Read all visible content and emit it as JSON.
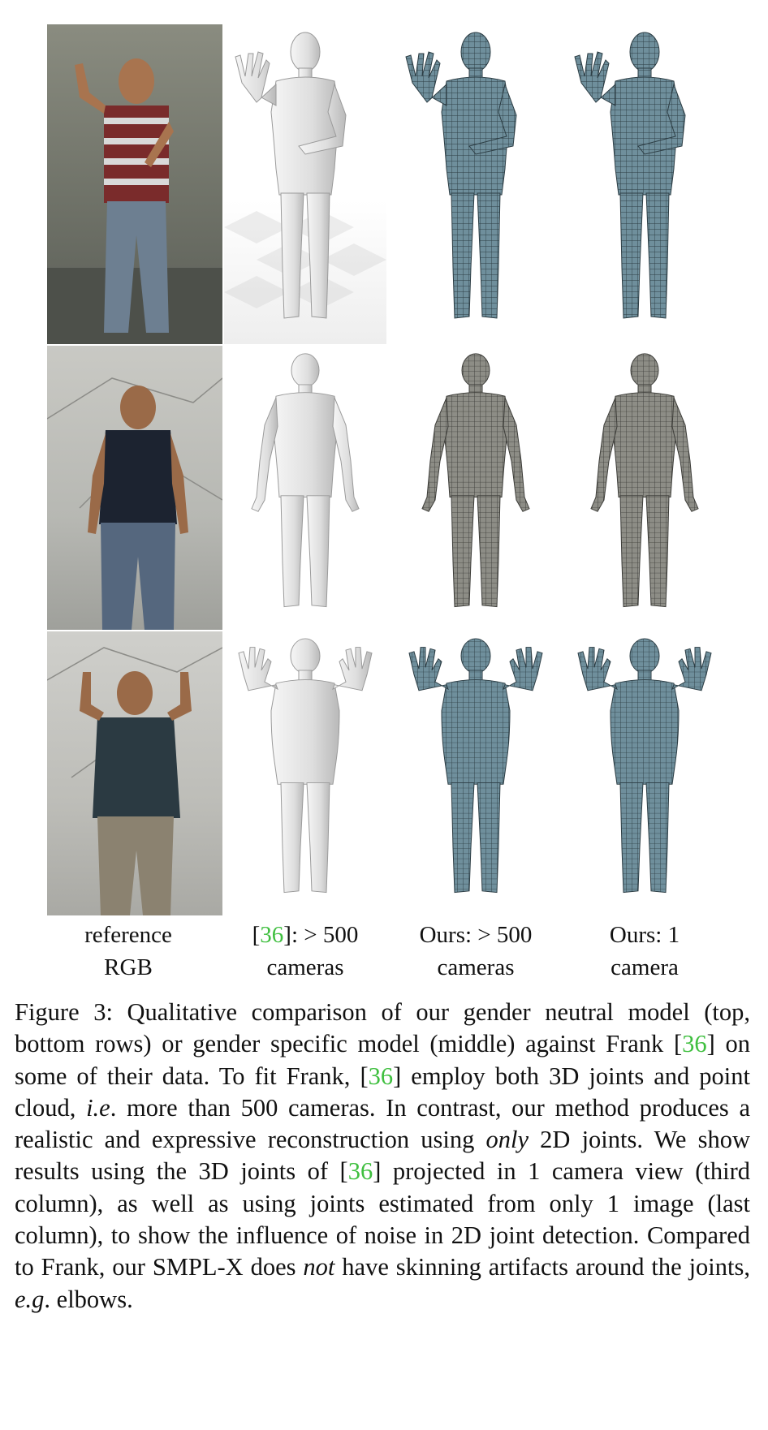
{
  "figure": {
    "rows": [
      "top",
      "middle",
      "bottom"
    ],
    "columns": [
      {
        "line1": "reference",
        "line2": "RGB"
      },
      {
        "prefix": "[",
        "cite": "36",
        "suffix": "]: > 500",
        "line2": "cameras"
      },
      {
        "line1": "Ours: > 500",
        "line2": "cameras"
      },
      {
        "line1": "Ours: 1",
        "line2": "camera"
      }
    ]
  },
  "caption": {
    "label": "Figure 3:",
    "t1": "Qualitative comparison of our gender neutral model (top, bottom rows) or gender specific model (middle) against Frank [",
    "c1": "36",
    "t2": "] on some of their data. To fit Frank, [",
    "c2": "36",
    "t3": "] employ both 3D joints and point cloud, ",
    "ie": "i.e",
    "t4": ". more than 500 cameras. In contrast, our method produces a realistic and expressive reconstruction using ",
    "only": "only",
    "t5": " 2D joints. We show results using the 3D joints of [",
    "c3": "36",
    "t6": "] projected in 1 camera view (third column), as well as using joints estimated from only 1 image (last column), to show the influence of noise in 2D joint detection. Compared to Frank, our SMPL-X does ",
    "not": "not",
    "t7": " have skinning artifacts around the joints, ",
    "eg": "e.g",
    "t8": ". elbows."
  },
  "colors": {
    "citation": "#3fbf3f",
    "mesh_blue": "#6f8f9c",
    "mesh_grey": "#8d8d86",
    "frank_white": "#e4e4e4"
  }
}
